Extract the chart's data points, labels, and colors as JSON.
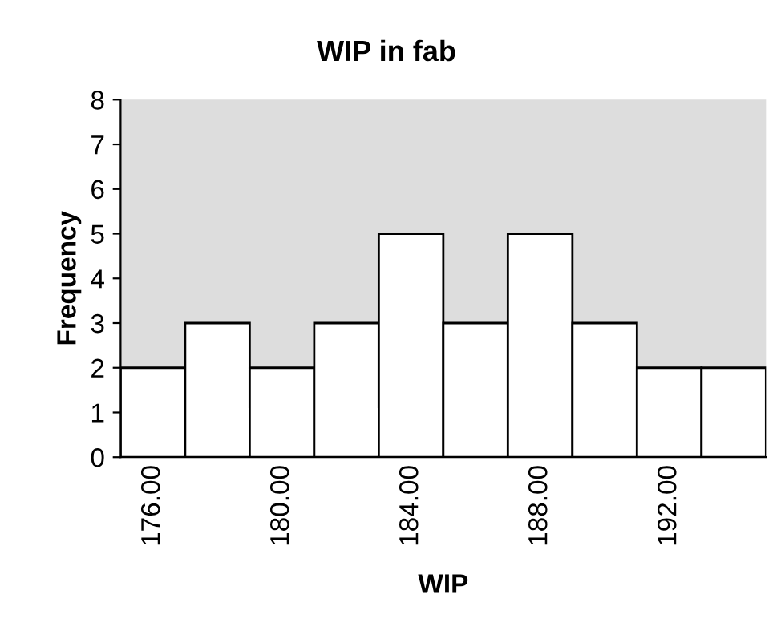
{
  "chart_data": {
    "type": "bar",
    "title": "WIP in fab",
    "xlabel": "WIP",
    "ylabel": "Frequency",
    "categories": [
      "176.00",
      null,
      "180.00",
      null,
      "184.00",
      null,
      "188.00",
      null,
      "192.00",
      null
    ],
    "series": [
      {
        "color": "#ffffff",
        "values": [
          2,
          3,
          2,
          3,
          5,
          3,
          5,
          3,
          2,
          2
        ]
      }
    ],
    "ylim": [
      0,
      8
    ],
    "yticks": [
      0,
      1,
      2,
      3,
      4,
      5,
      6,
      7,
      8
    ],
    "grid": false,
    "legend": false
  }
}
